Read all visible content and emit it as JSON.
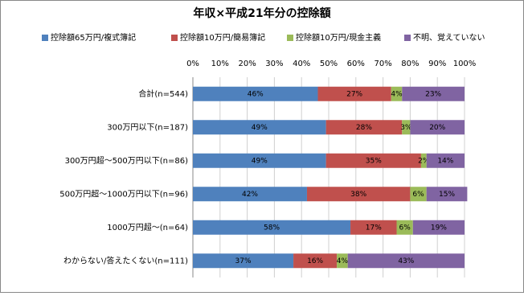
{
  "chart_data": {
    "type": "stacked-barh",
    "title": "年収×平成21年分の控除額",
    "categories": [
      "合計(n=544)",
      "300万円以下(n=187)",
      "300万円超～500万円以下(n=86)",
      "500万円超～1000万円以下(n=96)",
      "1000万円超～(n=64)",
      "わからない/答えたくない(n=111)"
    ],
    "series": [
      {
        "name": "控除額65万円/複式簿記",
        "color": "#4f81bd",
        "values": [
          46,
          49,
          49,
          42,
          58,
          37
        ],
        "value_labels": [
          "46%",
          "49%",
          "49%",
          "42%",
          "58%",
          "37%"
        ]
      },
      {
        "name": "控除額10万円/簡易簿記",
        "color": "#c0504d",
        "values": [
          27,
          28,
          35,
          38,
          17,
          16
        ],
        "value_labels": [
          "27%",
          "28%",
          "35%",
          "38%",
          "17%",
          "16%"
        ]
      },
      {
        "name": "控除額10万円/現金主義",
        "color": "#9bbb59",
        "values": [
          4,
          3,
          2,
          6,
          6,
          4
        ],
        "value_labels": [
          "4%",
          "3%",
          "2%",
          "6%",
          "6%",
          "4%"
        ]
      },
      {
        "name": "不明、覚えていない",
        "color": "#8064a2",
        "values": [
          23,
          20,
          14,
          15,
          19,
          43
        ],
        "value_labels": [
          "23%",
          "20%",
          "14%",
          "15%",
          "19%",
          "43%"
        ]
      }
    ],
    "xlim": [
      0,
      100
    ],
    "xticks": [
      {
        "value": 0,
        "label": "0%"
      },
      {
        "value": 10,
        "label": "10%"
      },
      {
        "value": 20,
        "label": "20%"
      },
      {
        "value": 30,
        "label": "30%"
      },
      {
        "value": 40,
        "label": "40%"
      },
      {
        "value": 50,
        "label": "50%"
      },
      {
        "value": 60,
        "label": "60%"
      },
      {
        "value": 70,
        "label": "70%"
      },
      {
        "value": 80,
        "label": "80%"
      },
      {
        "value": 90,
        "label": "90%"
      },
      {
        "value": 100,
        "label": "100%"
      }
    ],
    "grid": true,
    "legend": "top"
  }
}
